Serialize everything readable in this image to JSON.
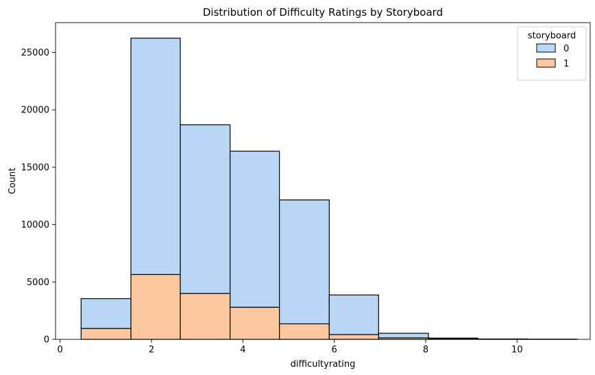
{
  "chart_data": {
    "type": "bar",
    "title": "Distribution of Difficulty Ratings by Storyboard",
    "xlabel": "difficultyrating",
    "ylabel": "Count",
    "xlim": [
      -0.1,
      11.6
    ],
    "ylim": [
      0,
      27600
    ],
    "xticks": [
      0,
      2,
      4,
      6,
      8,
      10
    ],
    "yticks": [
      0,
      5000,
      10000,
      15000,
      20000,
      25000
    ],
    "stacked": true,
    "bin_edges": [
      0.46,
      1.55,
      2.63,
      3.72,
      4.8,
      5.89,
      6.97,
      8.06,
      9.14,
      10.23,
      11.31
    ],
    "series": [
      {
        "name": "0",
        "color": "#b9d7f5",
        "values": [
          2600,
          20600,
          14700,
          13600,
          10800,
          3450,
          400,
          60,
          20,
          10
        ]
      },
      {
        "name": "1",
        "color": "#fdc7a0",
        "values": [
          950,
          5650,
          4000,
          2800,
          1350,
          420,
          130,
          50,
          15,
          5
        ]
      }
    ],
    "legend": {
      "title": "storyboard",
      "placement": "top-right"
    },
    "grid": false
  }
}
